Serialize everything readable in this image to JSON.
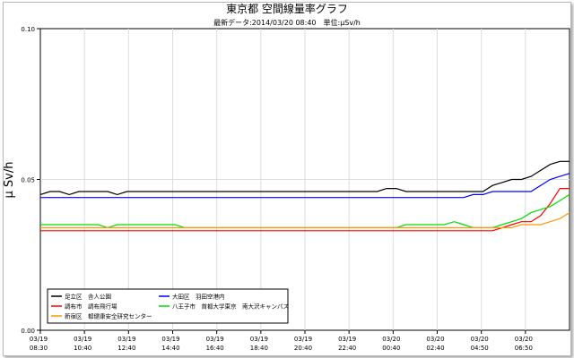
{
  "chart_data": {
    "type": "line",
    "title": "東京都 空間線量率グラフ",
    "subtitle": "最新データ:2014/03/20 08:40　単位:μSv/h",
    "ylabel": "μ Sv/h",
    "ylim": [
      0.0,
      0.1
    ],
    "yticks": [
      "0.00",
      "0.05",
      "0.10"
    ],
    "ytick_values": [
      0.0,
      0.05,
      0.1
    ],
    "grid": true,
    "legend_position": "bottom-left",
    "x_ticks": [
      {
        "date": "03/19",
        "time": "08:30"
      },
      {
        "date": "03/19",
        "time": "10:40"
      },
      {
        "date": "03/19",
        "time": "12:40"
      },
      {
        "date": "03/19",
        "time": "14:40"
      },
      {
        "date": "03/19",
        "time": "16:40"
      },
      {
        "date": "03/19",
        "time": "18:40"
      },
      {
        "date": "03/19",
        "time": "20:40"
      },
      {
        "date": "03/19",
        "time": "22:40"
      },
      {
        "date": "03/20",
        "time": "00:40"
      },
      {
        "date": "03/20",
        "time": "02:40"
      },
      {
        "date": "03/20",
        "time": "04:50"
      },
      {
        "date": "03/20",
        "time": "06:50"
      }
    ],
    "series": [
      {
        "name": "足立区　舎人公園",
        "color": "#000000",
        "values": [
          0.045,
          0.046,
          0.046,
          0.045,
          0.046,
          0.046,
          0.046,
          0.046,
          0.045,
          0.046,
          0.046,
          0.046,
          0.046,
          0.046,
          0.046,
          0.046,
          0.046,
          0.046,
          0.046,
          0.046,
          0.046,
          0.046,
          0.046,
          0.046,
          0.046,
          0.046,
          0.046,
          0.046,
          0.046,
          0.046,
          0.046,
          0.046,
          0.046,
          0.046,
          0.046,
          0.046,
          0.047,
          0.047,
          0.046,
          0.046,
          0.046,
          0.046,
          0.046,
          0.046,
          0.046,
          0.046,
          0.046,
          0.048,
          0.049,
          0.05,
          0.05,
          0.051,
          0.053,
          0.055,
          0.056,
          0.056
        ]
      },
      {
        "name": "大田区　羽田空港内",
        "color": "#0000ff",
        "values": [
          0.044,
          0.044,
          0.044,
          0.044,
          0.044,
          0.044,
          0.044,
          0.044,
          0.044,
          0.044,
          0.044,
          0.044,
          0.044,
          0.044,
          0.044,
          0.044,
          0.044,
          0.044,
          0.044,
          0.044,
          0.044,
          0.044,
          0.044,
          0.044,
          0.044,
          0.044,
          0.044,
          0.044,
          0.044,
          0.044,
          0.044,
          0.044,
          0.044,
          0.044,
          0.044,
          0.044,
          0.044,
          0.044,
          0.044,
          0.044,
          0.044,
          0.044,
          0.044,
          0.044,
          0.044,
          0.045,
          0.045,
          0.046,
          0.046,
          0.046,
          0.046,
          0.046,
          0.048,
          0.05,
          0.051,
          0.052
        ]
      },
      {
        "name": "調布市　調布飛行場",
        "color": "#ff0000",
        "values": [
          0.033,
          0.033,
          0.033,
          0.033,
          0.033,
          0.033,
          0.033,
          0.033,
          0.033,
          0.033,
          0.033,
          0.033,
          0.033,
          0.033,
          0.033,
          0.033,
          0.033,
          0.033,
          0.033,
          0.033,
          0.033,
          0.033,
          0.033,
          0.033,
          0.033,
          0.033,
          0.033,
          0.033,
          0.033,
          0.033,
          0.033,
          0.033,
          0.033,
          0.033,
          0.033,
          0.033,
          0.033,
          0.033,
          0.033,
          0.033,
          0.033,
          0.033,
          0.033,
          0.033,
          0.033,
          0.033,
          0.033,
          0.033,
          0.034,
          0.035,
          0.036,
          0.036,
          0.038,
          0.042,
          0.047,
          0.047
        ]
      },
      {
        "name": "八王子市　首都大学東京　南大沢キャンパス",
        "color": "#00dd00",
        "values": [
          0.035,
          0.035,
          0.035,
          0.035,
          0.035,
          0.035,
          0.035,
          0.034,
          0.035,
          0.035,
          0.035,
          0.035,
          0.035,
          0.035,
          0.035,
          0.034,
          0.034,
          0.034,
          0.034,
          0.034,
          0.034,
          0.034,
          0.034,
          0.034,
          0.034,
          0.034,
          0.034,
          0.034,
          0.034,
          0.034,
          0.034,
          0.034,
          0.034,
          0.034,
          0.034,
          0.034,
          0.034,
          0.034,
          0.035,
          0.035,
          0.035,
          0.035,
          0.035,
          0.036,
          0.035,
          0.034,
          0.034,
          0.034,
          0.035,
          0.036,
          0.037,
          0.039,
          0.04,
          0.041,
          0.043,
          0.045
        ]
      },
      {
        "name": "新宿区　都健康安全研究センター",
        "color": "#ff9900",
        "values": [
          0.034,
          0.034,
          0.034,
          0.034,
          0.034,
          0.034,
          0.034,
          0.034,
          0.034,
          0.034,
          0.034,
          0.034,
          0.034,
          0.034,
          0.034,
          0.034,
          0.034,
          0.034,
          0.034,
          0.034,
          0.034,
          0.034,
          0.034,
          0.034,
          0.034,
          0.034,
          0.034,
          0.034,
          0.034,
          0.034,
          0.034,
          0.034,
          0.034,
          0.034,
          0.034,
          0.034,
          0.034,
          0.034,
          0.034,
          0.034,
          0.034,
          0.034,
          0.034,
          0.034,
          0.034,
          0.034,
          0.034,
          0.034,
          0.034,
          0.034,
          0.035,
          0.035,
          0.035,
          0.036,
          0.037,
          0.039
        ]
      }
    ]
  }
}
